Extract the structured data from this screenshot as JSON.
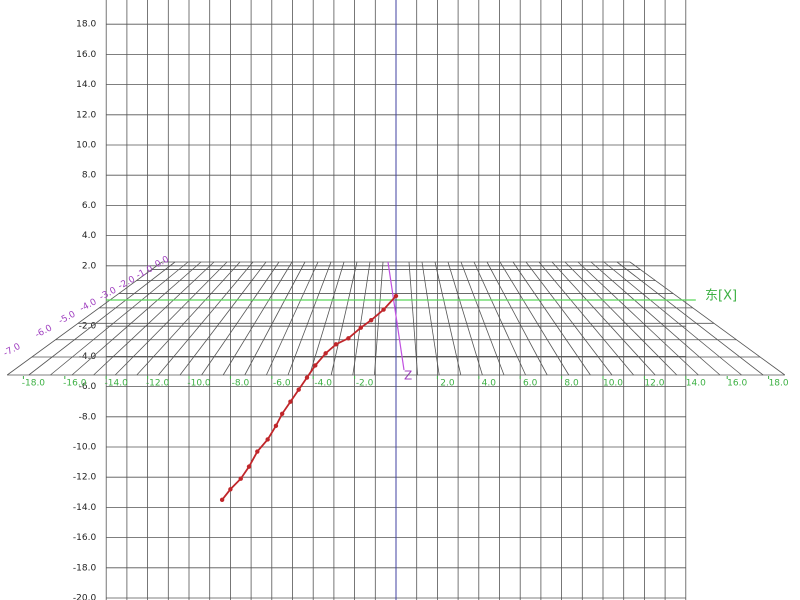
{
  "chart_data": {
    "type": "trajectory",
    "x_axis_label": "东[X]",
    "z_axis_label": "Z",
    "xlim": [
      -18,
      18
    ],
    "ylim": [
      -20,
      18
    ],
    "xticks": [
      {
        "value": -18,
        "label": "-18.0"
      },
      {
        "value": -16,
        "label": "-16.0"
      },
      {
        "value": -14,
        "label": "-14.0"
      },
      {
        "value": -12,
        "label": "-12.0"
      },
      {
        "value": -10,
        "label": "-10.0"
      },
      {
        "value": -8,
        "label": "-8.0"
      },
      {
        "value": -6,
        "label": "-6.0"
      },
      {
        "value": -4,
        "label": "-4.0"
      },
      {
        "value": -2,
        "label": "-2.0"
      },
      {
        "value": 2,
        "label": "2.0"
      },
      {
        "value": 4,
        "label": "4.0"
      },
      {
        "value": 6,
        "label": "6.0"
      },
      {
        "value": 8,
        "label": "8.0"
      },
      {
        "value": 10,
        "label": "10.0"
      },
      {
        "value": 12,
        "label": "12.0"
      },
      {
        "value": 14,
        "label": "14.0"
      },
      {
        "value": 16,
        "label": "16.0"
      },
      {
        "value": 18,
        "label": "18.0"
      }
    ],
    "yticks": [
      {
        "value": 18,
        "label": "18.0"
      },
      {
        "value": 16,
        "label": "16.0"
      },
      {
        "value": 14,
        "label": "14.0"
      },
      {
        "value": 12,
        "label": "12.0"
      },
      {
        "value": 10,
        "label": "10.0"
      },
      {
        "value": 8,
        "label": "8.0"
      },
      {
        "value": 6,
        "label": "6.0"
      },
      {
        "value": 4,
        "label": "4.0"
      },
      {
        "value": 2,
        "label": "2.0"
      },
      {
        "value": -2,
        "label": "-2.0"
      },
      {
        "value": -4,
        "label": "-4.0"
      },
      {
        "value": -6,
        "label": "-6.0"
      },
      {
        "value": -8,
        "label": "-8.0"
      },
      {
        "value": -10,
        "label": "-10.0"
      },
      {
        "value": -12,
        "label": "-12.0"
      },
      {
        "value": -14,
        "label": "-14.0"
      },
      {
        "value": -16,
        "label": "-16.0"
      },
      {
        "value": -18,
        "label": "-18.0"
      },
      {
        "value": -20,
        "label": "-20.0"
      }
    ],
    "zticks": [
      {
        "value": -7,
        "label": "-7.0"
      },
      {
        "value": -6,
        "label": "-6.0"
      },
      {
        "value": -5,
        "label": "-5.0"
      },
      {
        "value": -4,
        "label": "-4.0"
      },
      {
        "value": -3,
        "label": "-3.0"
      },
      {
        "value": -2,
        "label": "-2.0"
      },
      {
        "value": -1,
        "label": "-1.0"
      },
      {
        "value": 0,
        "label": "0.0"
      }
    ],
    "series": [
      {
        "color": "#c0262a",
        "x": [
          0,
          -0.6,
          -1.2,
          -1.7,
          -2.3,
          -2.9,
          -3.4,
          -3.9,
          -4.3,
          -4.7,
          -5.1,
          -5.5,
          -5.8,
          -6.2,
          -6.7,
          -7.1,
          -7.5,
          -8.0,
          -8.4
        ],
        "y": [
          0,
          -0.9,
          -1.6,
          -2.1,
          -2.8,
          -3.2,
          -3.8,
          -4.6,
          -5.4,
          -6.2,
          -7.0,
          -7.8,
          -8.6,
          -9.5,
          -10.3,
          -11.3,
          -12.1,
          -12.8,
          -13.5
        ]
      }
    ]
  }
}
